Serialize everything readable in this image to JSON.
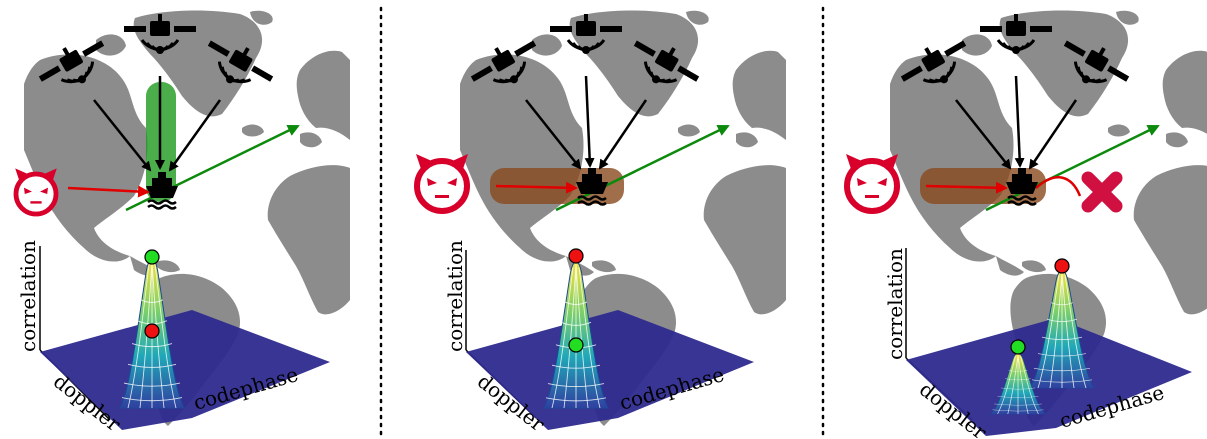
{
  "panels": [
    {
      "id": "authentic",
      "ylabel": "correlation",
      "xlabel_left": "doppler",
      "xlabel_right": "codephase",
      "spoofer_size": "small",
      "highlight": "vertical-green",
      "top_dot": "green",
      "inner_dot": "red",
      "second_peak": false,
      "trajectory_blocked": false
    },
    {
      "id": "aligned-spoofing",
      "ylabel": "correlation",
      "xlabel_left": "doppler",
      "xlabel_right": "codephase",
      "spoofer_size": "large",
      "highlight": "horizontal-brown",
      "top_dot": "red",
      "inner_dot": "green",
      "second_peak": false,
      "trajectory_blocked": false
    },
    {
      "id": "detected-spoofing",
      "ylabel": "correlation",
      "xlabel_left": "doppler",
      "xlabel_right": "codephase",
      "spoofer_size": "large",
      "highlight": "horizontal-brown",
      "top_dot": "red",
      "inner_dot": "green",
      "second_peak": true,
      "trajectory_blocked": true
    }
  ],
  "icons": {
    "satellite": "satellite-icon",
    "ship": "ship-icon",
    "spoofer": "devil-face-icon",
    "blocked": "cross-icon"
  },
  "colors": {
    "land": "#8c8c8c",
    "trajectory": "#0c8a0c",
    "spoof_signal": "#e00000",
    "spoofer": "#d8002a",
    "highlight_green": "#1e9a1e",
    "highlight_brown": "#8a4a1e",
    "plane": "#2e2a8e",
    "dot_green": "#22dd22",
    "dot_red": "#ee1111"
  }
}
